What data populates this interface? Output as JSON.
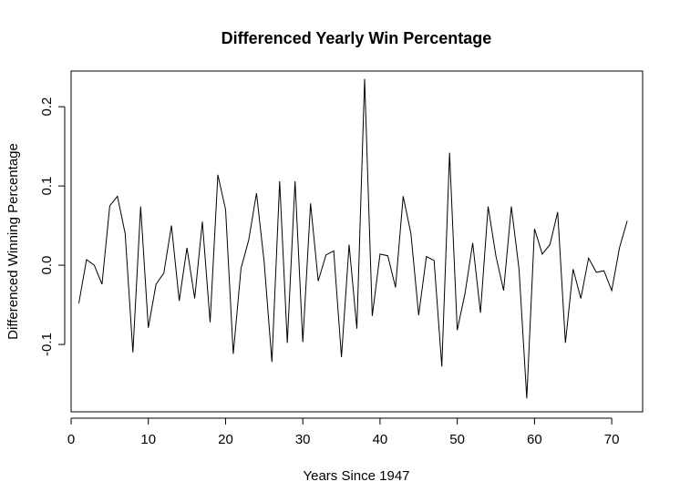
{
  "chart_data": {
    "type": "line",
    "title": "Differenced Yearly Win Percentage",
    "xlabel": "Years Since 1947",
    "ylabel": "Differenced Winning Percentage",
    "xlim": [
      0,
      74
    ],
    "ylim": [
      -0.185,
      0.245
    ],
    "x_ticks": [
      0,
      10,
      20,
      30,
      40,
      50,
      60,
      70
    ],
    "y_ticks": [
      -0.1,
      0.0,
      0.1,
      0.2
    ],
    "y_tick_labels": [
      "-0.1",
      "0.0",
      "0.1",
      "0.2"
    ],
    "grid": false,
    "legend": "none",
    "line_color": "#000000",
    "series": [
      {
        "x": [
          1,
          2,
          3,
          4,
          5,
          6,
          7,
          8,
          9,
          10,
          11,
          12,
          13,
          14,
          15,
          16,
          17,
          18,
          19,
          20,
          21,
          22,
          23,
          24,
          25,
          26,
          27,
          28,
          29,
          30,
          31,
          32,
          33,
          34,
          35,
          36,
          37,
          38,
          39,
          40,
          41,
          42,
          43,
          44,
          45,
          46,
          47,
          48,
          49,
          50,
          51,
          52,
          53,
          54,
          55,
          56,
          57,
          58,
          59,
          60,
          61,
          62,
          63,
          64,
          65,
          66,
          67,
          68,
          69,
          70,
          71,
          72
        ],
        "values": [
          -0.048,
          0.007,
          0.0,
          -0.024,
          0.075,
          0.087,
          0.04,
          -0.11,
          0.074,
          -0.079,
          -0.024,
          -0.01,
          0.05,
          -0.045,
          0.022,
          -0.042,
          0.055,
          -0.072,
          0.114,
          0.07,
          -0.112,
          -0.004,
          0.032,
          0.091,
          0.004,
          -0.122,
          0.106,
          -0.098,
          0.106,
          -0.097,
          0.078,
          -0.02,
          0.013,
          0.018,
          -0.116,
          0.026,
          -0.08,
          0.235,
          -0.064,
          0.014,
          0.012,
          -0.028,
          0.087,
          0.04,
          -0.063,
          0.011,
          0.006,
          -0.128,
          0.142,
          -0.082,
          -0.036,
          0.028,
          -0.06,
          0.074,
          0.012,
          -0.032,
          0.074,
          -0.005,
          -0.168,
          0.046,
          0.014,
          0.026,
          0.067,
          -0.098,
          -0.005,
          -0.042,
          0.009,
          -0.009,
          -0.007,
          -0.032,
          0.022,
          0.056
        ]
      }
    ]
  }
}
